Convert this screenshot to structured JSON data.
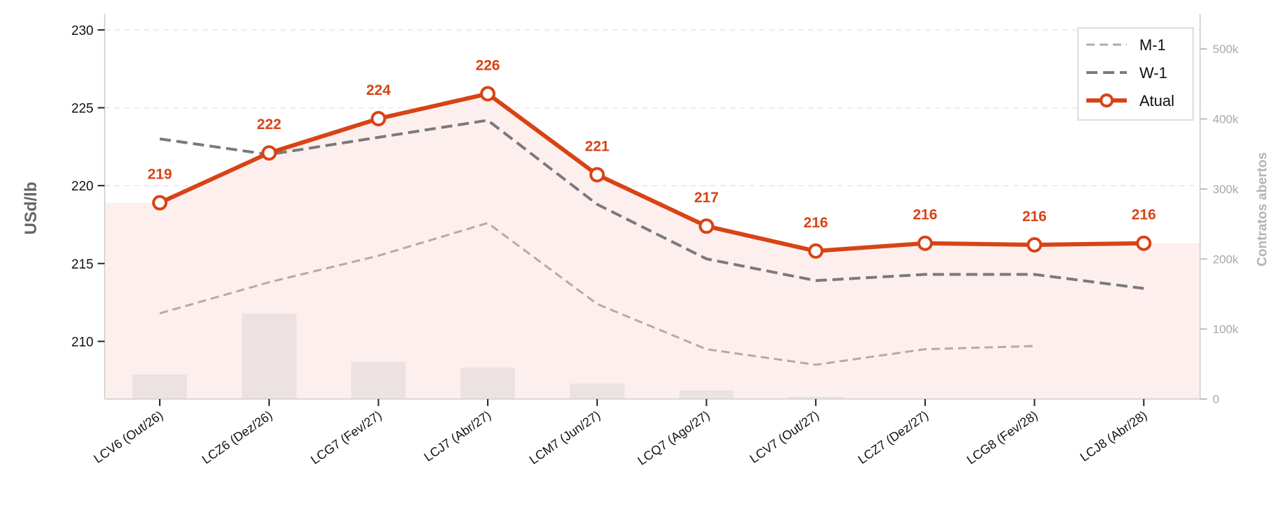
{
  "chart_data": {
    "type": "line",
    "categories": [
      "LCV6 (Out/26)",
      "LCZ6 (Dez/26)",
      "LCG7 (Fev/27)",
      "LCJ7 (Abr/27)",
      "LCM7 (Jun/27)",
      "LCQ7 (Ago/27)",
      "LCV7 (Out/27)",
      "LCZ7 (Dez/27)",
      "LCG8 (Fev/28)",
      "LCJ8 (Abr/28)"
    ],
    "ylabel": "USd/lb",
    "y2label": "Contratos abertos",
    "ylim": [
      206.3,
      230.8
    ],
    "y2lim": [
      0,
      545000
    ],
    "yticks": [
      210,
      215,
      220,
      225,
      230
    ],
    "y2ticks": [
      0,
      100000,
      200000,
      300000,
      400000,
      500000
    ],
    "y2tick_labels": [
      "0",
      "100k",
      "200k",
      "300k",
      "400k",
      "500k"
    ],
    "grid": true,
    "legend_position": "top-right",
    "series": [
      {
        "name": "M-1",
        "style": "dashed",
        "color": "#b5aaa7",
        "values": [
          211.8,
          213.8,
          215.5,
          217.6,
          212.4,
          209.5,
          208.5,
          209.5,
          209.7,
          null
        ]
      },
      {
        "name": "W-1",
        "style": "dashed",
        "color": "#7a7a7a",
        "values": [
          223.0,
          222.0,
          223.1,
          224.2,
          218.8,
          215.3,
          213.9,
          214.3,
          214.3,
          213.4
        ]
      },
      {
        "name": "Atual",
        "style": "solid-markers",
        "color": "#d84315",
        "values": [
          218.9,
          222.1,
          224.3,
          225.9,
          220.7,
          217.4,
          215.8,
          216.3,
          216.2,
          216.3
        ]
      }
    ],
    "data_labels": [
      "219",
      "222",
      "224",
      "226",
      "221",
      "217",
      "216",
      "216",
      "216",
      "216"
    ],
    "open_interest": [
      35000,
      122000,
      53000,
      45000,
      22000,
      12000,
      3000,
      0,
      0,
      0
    ],
    "colors": {
      "area_fill": "#fdefee",
      "bar_fill": "#ebe2e1",
      "grid": "#ececec",
      "axis": "#d8d8d8"
    }
  }
}
